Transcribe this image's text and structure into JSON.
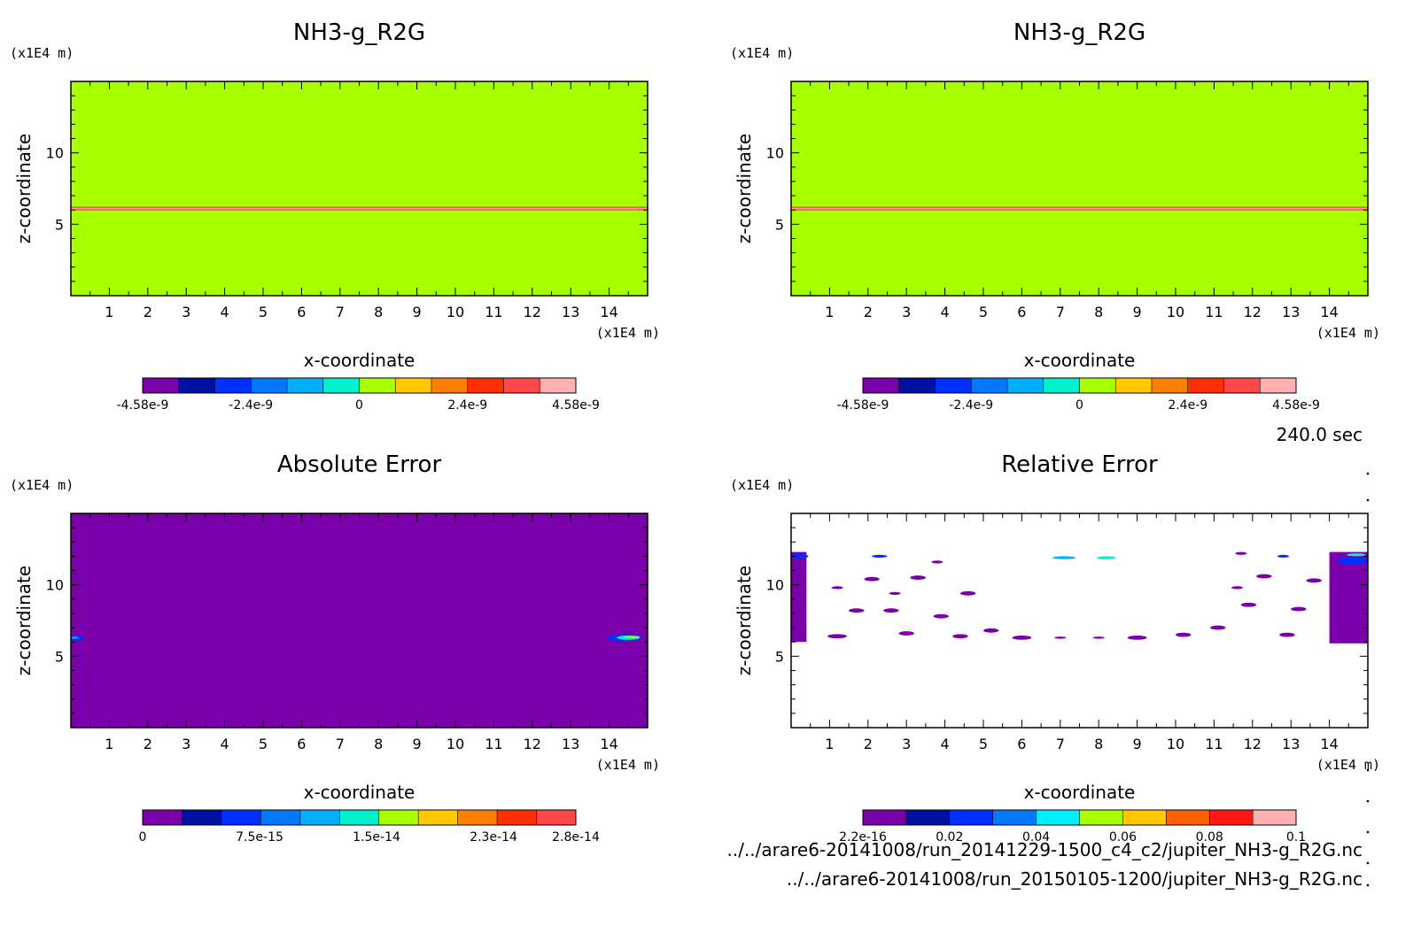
{
  "figure": {
    "time_label": "240.0 sec",
    "files": [
      "../../arare6-20141008/run_20141229-1500_c4_c2/jupiter_NH3-g_R2G.nc",
      "../../arare6-20141008/run_20150105-1200/jupiter_NH3-g_R2G.nc"
    ]
  },
  "chart_data": [
    {
      "type": "heatmap",
      "title": "NH3-g_R2G",
      "xlabel": "x-coordinate",
      "ylabel": "z-coordinate",
      "x_unit": "(x1E4 m)",
      "y_unit": "(x1E4 m)",
      "xlim": [
        0,
        15
      ],
      "ylim": [
        0,
        15
      ],
      "x_ticks": [
        1,
        2,
        3,
        4,
        5,
        6,
        7,
        8,
        9,
        10,
        11,
        12,
        13,
        14
      ],
      "y_ticks": [
        5,
        10
      ],
      "background": "#a8ff00",
      "features": [
        {
          "shape": "band",
          "z": 6.1,
          "thickness": 0.25,
          "color": "#ff3a3a"
        },
        {
          "shape": "band",
          "z": 6.1,
          "thickness": 0.1,
          "color": "#ffb0b0"
        }
      ],
      "colorbar": {
        "colors": [
          "#7a00aa",
          "#0010a0",
          "#0030ff",
          "#0078ff",
          "#00b0ff",
          "#00f0d0",
          "#a8ff00",
          "#ffc800",
          "#ff8000",
          "#ff3000",
          "#ff4848",
          "#ffb0b0"
        ],
        "tick_labels": [
          "-4.58e-9",
          "-2.4e-9",
          "0",
          "2.4e-9",
          "4.58e-9"
        ],
        "tick_positions": [
          0,
          0.25,
          0.5,
          0.75,
          1
        ]
      }
    },
    {
      "type": "heatmap",
      "title": "NH3-g_R2G",
      "xlabel": "x-coordinate",
      "ylabel": "z-coordinate",
      "x_unit": "(x1E4 m)",
      "y_unit": "(x1E4 m)",
      "xlim": [
        0,
        15
      ],
      "ylim": [
        0,
        15
      ],
      "x_ticks": [
        1,
        2,
        3,
        4,
        5,
        6,
        7,
        8,
        9,
        10,
        11,
        12,
        13,
        14
      ],
      "y_ticks": [
        5,
        10
      ],
      "background": "#a8ff00",
      "features": [
        {
          "shape": "band",
          "z": 6.1,
          "thickness": 0.25,
          "color": "#ff3a3a"
        },
        {
          "shape": "band",
          "z": 6.1,
          "thickness": 0.1,
          "color": "#ffb0b0"
        }
      ],
      "colorbar": {
        "colors": [
          "#7a00aa",
          "#0010a0",
          "#0030ff",
          "#0078ff",
          "#00b0ff",
          "#00f0d0",
          "#a8ff00",
          "#ffc800",
          "#ff8000",
          "#ff3000",
          "#ff4848",
          "#ffb0b0"
        ],
        "tick_labels": [
          "-4.58e-9",
          "-2.4e-9",
          "0",
          "2.4e-9",
          "4.58e-9"
        ],
        "tick_positions": [
          0,
          0.25,
          0.5,
          0.75,
          1
        ]
      }
    },
    {
      "type": "heatmap",
      "title": "Absolute Error",
      "xlabel": "x-coordinate",
      "ylabel": "z-coordinate",
      "x_unit": "(x1E4 m)",
      "y_unit": "(x1E4 m)",
      "xlim": [
        0,
        15
      ],
      "ylim": [
        0,
        15
      ],
      "x_ticks": [
        1,
        2,
        3,
        4,
        5,
        6,
        7,
        8,
        9,
        10,
        11,
        12,
        13,
        14
      ],
      "y_ticks": [
        5,
        10
      ],
      "background": "#7a00aa",
      "features": [
        {
          "shape": "blob",
          "x": 14.4,
          "z": 6.3,
          "w": 0.9,
          "h": 0.5,
          "color": "#0030ff"
        },
        {
          "shape": "blob",
          "x": 14.5,
          "z": 6.3,
          "w": 0.6,
          "h": 0.3,
          "color": "#00f0d0"
        },
        {
          "shape": "blob",
          "x": 14.6,
          "z": 6.35,
          "w": 0.4,
          "h": 0.15,
          "color": "#a8ff00"
        },
        {
          "shape": "blob",
          "x": 0.15,
          "z": 6.3,
          "w": 0.35,
          "h": 0.35,
          "color": "#0030ff"
        },
        {
          "shape": "blob",
          "x": 0.1,
          "z": 6.3,
          "w": 0.2,
          "h": 0.15,
          "color": "#00b0ff"
        }
      ],
      "colorbar": {
        "colors": [
          "#7a00aa",
          "#0010a0",
          "#0030ff",
          "#0078ff",
          "#00b0ff",
          "#00f0d0",
          "#a8ff00",
          "#ffc800",
          "#ff8000",
          "#ff3000",
          "#ff4848"
        ],
        "tick_labels": [
          "0",
          "7.5e-15",
          "1.5e-14",
          "2.3e-14",
          "2.8e-14"
        ],
        "tick_positions": [
          0,
          0.27,
          0.54,
          0.81,
          1
        ]
      }
    },
    {
      "type": "heatmap",
      "title": "Relative Error",
      "xlabel": "x-coordinate",
      "ylabel": "z-coordinate",
      "x_unit": "(x1E4 m)",
      "y_unit": "(x1E4 m)",
      "xlim": [
        0,
        15
      ],
      "ylim": [
        0,
        15
      ],
      "x_ticks": [
        1,
        2,
        3,
        4,
        5,
        6,
        7,
        8,
        9,
        10,
        11,
        12,
        13,
        14
      ],
      "y_ticks": [
        5,
        10
      ],
      "background": "#ffffff",
      "features": [
        {
          "shape": "rect",
          "x": 0.0,
          "z": 6.0,
          "w": 0.4,
          "h": 6.3,
          "color": "#7a00aa"
        },
        {
          "shape": "rect",
          "x": 14.0,
          "z": 5.9,
          "w": 1.0,
          "h": 6.4,
          "color": "#7a00aa"
        },
        {
          "shape": "blob",
          "x": 14.6,
          "z": 11.7,
          "w": 0.8,
          "h": 0.5,
          "color": "#0030ff"
        },
        {
          "shape": "blob",
          "x": 14.7,
          "z": 12.1,
          "w": 0.5,
          "h": 0.2,
          "color": "#00f0d0"
        },
        {
          "shape": "blob",
          "x": 0.2,
          "z": 12.0,
          "w": 0.5,
          "h": 0.3,
          "color": "#0030ff"
        },
        {
          "shape": "blob",
          "x": 7.1,
          "z": 11.9,
          "w": 0.6,
          "h": 0.2,
          "color": "#00b0ff"
        },
        {
          "shape": "blob",
          "x": 8.2,
          "z": 11.9,
          "w": 0.5,
          "h": 0.2,
          "color": "#00f0d0"
        },
        {
          "shape": "blob",
          "x": 2.3,
          "z": 12.0,
          "w": 0.4,
          "h": 0.2,
          "color": "#0030ff"
        },
        {
          "shape": "blob",
          "x": 12.8,
          "z": 12.0,
          "w": 0.3,
          "h": 0.2,
          "color": "#0030ff"
        },
        {
          "shape": "blob",
          "x": 1.2,
          "z": 6.4,
          "w": 0.5,
          "h": 0.3,
          "color": "#7a00aa"
        },
        {
          "shape": "blob",
          "x": 1.7,
          "z": 8.2,
          "w": 0.4,
          "h": 0.3,
          "color": "#7a00aa"
        },
        {
          "shape": "blob",
          "x": 2.1,
          "z": 10.4,
          "w": 0.4,
          "h": 0.3,
          "color": "#7a00aa"
        },
        {
          "shape": "blob",
          "x": 2.6,
          "z": 8.2,
          "w": 0.4,
          "h": 0.3,
          "color": "#7a00aa"
        },
        {
          "shape": "blob",
          "x": 3.0,
          "z": 6.6,
          "w": 0.4,
          "h": 0.3,
          "color": "#7a00aa"
        },
        {
          "shape": "blob",
          "x": 3.3,
          "z": 10.5,
          "w": 0.4,
          "h": 0.3,
          "color": "#7a00aa"
        },
        {
          "shape": "blob",
          "x": 3.9,
          "z": 7.8,
          "w": 0.4,
          "h": 0.3,
          "color": "#7a00aa"
        },
        {
          "shape": "blob",
          "x": 4.4,
          "z": 6.4,
          "w": 0.4,
          "h": 0.3,
          "color": "#7a00aa"
        },
        {
          "shape": "blob",
          "x": 4.6,
          "z": 9.4,
          "w": 0.4,
          "h": 0.3,
          "color": "#7a00aa"
        },
        {
          "shape": "blob",
          "x": 5.2,
          "z": 6.8,
          "w": 0.4,
          "h": 0.3,
          "color": "#7a00aa"
        },
        {
          "shape": "blob",
          "x": 6.0,
          "z": 6.3,
          "w": 0.5,
          "h": 0.3,
          "color": "#7a00aa"
        },
        {
          "shape": "blob",
          "x": 9.0,
          "z": 6.3,
          "w": 0.5,
          "h": 0.3,
          "color": "#7a00aa"
        },
        {
          "shape": "blob",
          "x": 10.2,
          "z": 6.5,
          "w": 0.4,
          "h": 0.3,
          "color": "#7a00aa"
        },
        {
          "shape": "blob",
          "x": 11.1,
          "z": 7.0,
          "w": 0.4,
          "h": 0.3,
          "color": "#7a00aa"
        },
        {
          "shape": "blob",
          "x": 11.9,
          "z": 8.6,
          "w": 0.4,
          "h": 0.3,
          "color": "#7a00aa"
        },
        {
          "shape": "blob",
          "x": 12.3,
          "z": 10.6,
          "w": 0.4,
          "h": 0.3,
          "color": "#7a00aa"
        },
        {
          "shape": "blob",
          "x": 12.9,
          "z": 6.5,
          "w": 0.4,
          "h": 0.3,
          "color": "#7a00aa"
        },
        {
          "shape": "blob",
          "x": 13.2,
          "z": 8.3,
          "w": 0.4,
          "h": 0.3,
          "color": "#7a00aa"
        },
        {
          "shape": "blob",
          "x": 13.6,
          "z": 10.3,
          "w": 0.4,
          "h": 0.3,
          "color": "#7a00aa"
        },
        {
          "shape": "blob",
          "x": 11.6,
          "z": 9.8,
          "w": 0.3,
          "h": 0.2,
          "color": "#7a00aa"
        },
        {
          "shape": "blob",
          "x": 2.7,
          "z": 9.4,
          "w": 0.3,
          "h": 0.2,
          "color": "#7a00aa"
        },
        {
          "shape": "blob",
          "x": 1.2,
          "z": 9.8,
          "w": 0.3,
          "h": 0.2,
          "color": "#7a00aa"
        },
        {
          "shape": "blob",
          "x": 3.8,
          "z": 11.6,
          "w": 0.3,
          "h": 0.2,
          "color": "#7a00aa"
        },
        {
          "shape": "blob",
          "x": 11.7,
          "z": 12.2,
          "w": 0.3,
          "h": 0.2,
          "color": "#7a00aa"
        },
        {
          "shape": "blob",
          "x": 7.0,
          "z": 6.3,
          "w": 0.3,
          "h": 0.15,
          "color": "#7a00aa"
        },
        {
          "shape": "blob",
          "x": 8.0,
          "z": 6.3,
          "w": 0.3,
          "h": 0.15,
          "color": "#7a00aa"
        }
      ],
      "colorbar": {
        "colors": [
          "#7a00aa",
          "#0010a0",
          "#0030ff",
          "#0078ff",
          "#00f0ff",
          "#a8ff00",
          "#ffc800",
          "#ff6000",
          "#ff1818",
          "#ffb0b0"
        ],
        "tick_labels": [
          "2.2e-16",
          "0.02",
          "0.04",
          "0.06",
          "0.08",
          "0.1"
        ],
        "tick_positions": [
          0,
          0.2,
          0.4,
          0.6,
          0.8,
          1
        ]
      }
    }
  ]
}
